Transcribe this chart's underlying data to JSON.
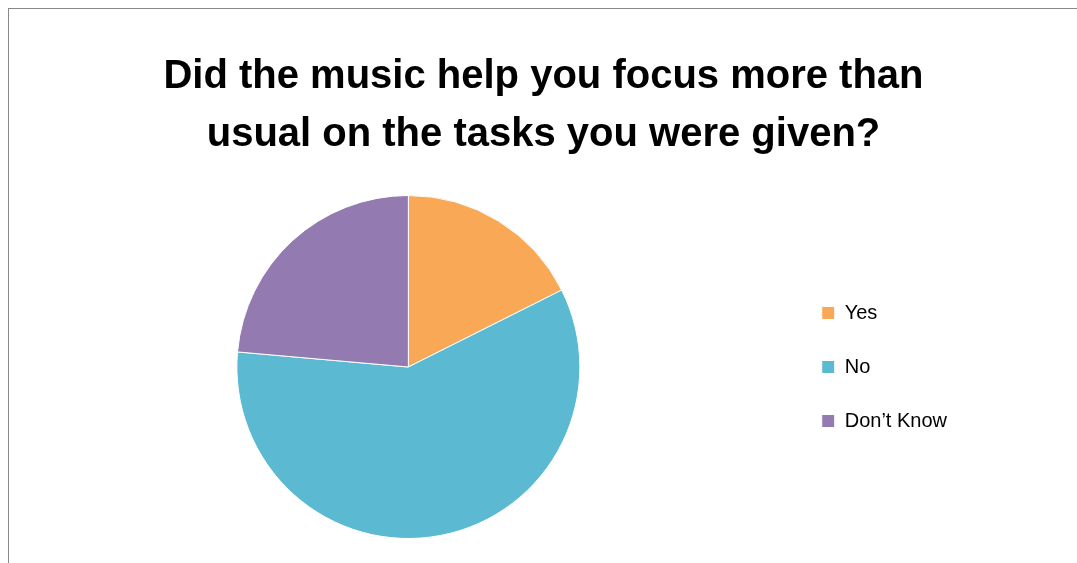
{
  "chart_data": {
    "type": "pie",
    "title": "Did the music help you focus more than usual on the tasks you were given?",
    "categories": [
      "Yes",
      "No",
      "Don’t Know"
    ],
    "values": [
      17.6,
      58.8,
      23.6
    ],
    "colors": [
      "#f9a856",
      "#5bb9d2",
      "#937bb1"
    ],
    "legend": "right"
  }
}
